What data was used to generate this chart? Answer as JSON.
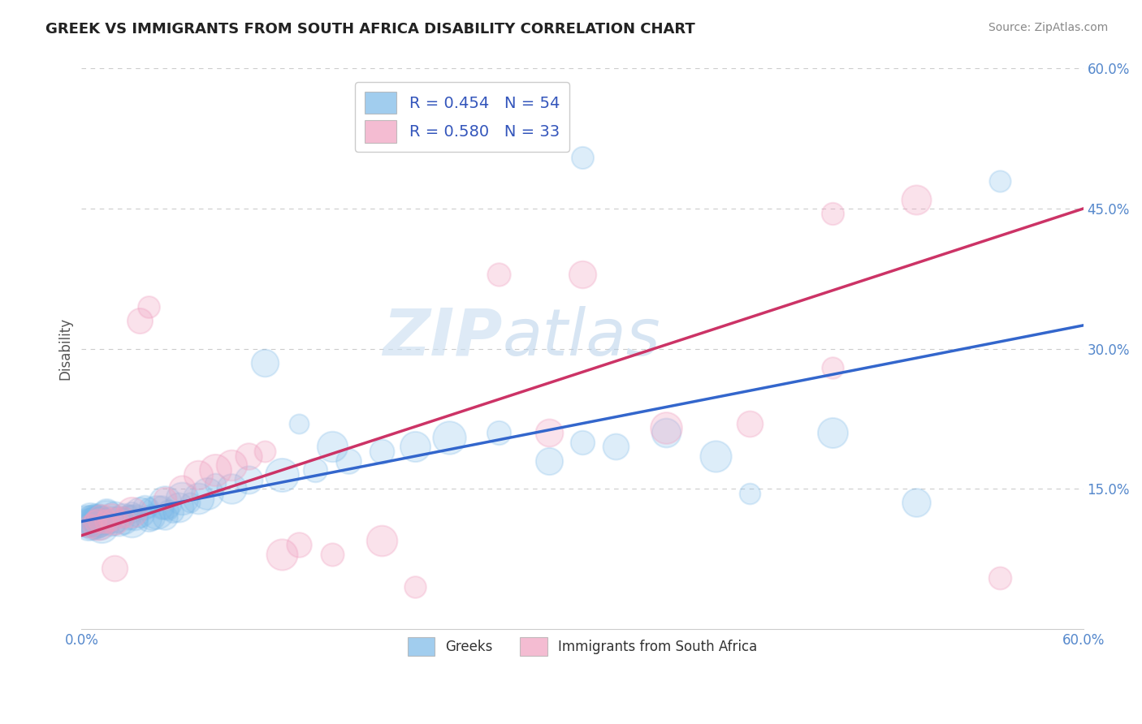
{
  "title": "GREEK VS IMMIGRANTS FROM SOUTH AFRICA DISABILITY CORRELATION CHART",
  "source": "Source: ZipAtlas.com",
  "ylabel": "Disability",
  "xlim": [
    0.0,
    0.6
  ],
  "ylim": [
    0.0,
    0.6
  ],
  "yticks": [
    0.15,
    0.3,
    0.45,
    0.6
  ],
  "ytick_labels": [
    "15.0%",
    "30.0%",
    "45.0%",
    "60.0%"
  ],
  "xtick_labels": [
    "0.0%",
    "60.0%"
  ],
  "watermark": "ZIPatlas",
  "legend_entries": [
    {
      "label": "R = 0.454   N = 54",
      "color": "#a8c8e8"
    },
    {
      "label": "R = 0.580   N = 33",
      "color": "#f4a8c4"
    }
  ],
  "legend_labels_bottom": [
    "Greeks",
    "Immigrants from South Africa"
  ],
  "blue_color": "#7ab8e8",
  "pink_color": "#f0a0c0",
  "blue_line_color": "#3366cc",
  "pink_line_color": "#cc3366",
  "greek_points": [
    [
      0.005,
      0.115
    ],
    [
      0.008,
      0.12
    ],
    [
      0.01,
      0.115
    ],
    [
      0.012,
      0.11
    ],
    [
      0.015,
      0.12
    ],
    [
      0.015,
      0.125
    ],
    [
      0.018,
      0.115
    ],
    [
      0.02,
      0.12
    ],
    [
      0.022,
      0.115
    ],
    [
      0.025,
      0.118
    ],
    [
      0.025,
      0.12
    ],
    [
      0.028,
      0.12
    ],
    [
      0.03,
      0.125
    ],
    [
      0.03,
      0.115
    ],
    [
      0.032,
      0.12
    ],
    [
      0.035,
      0.125
    ],
    [
      0.038,
      0.13
    ],
    [
      0.04,
      0.118
    ],
    [
      0.04,
      0.13
    ],
    [
      0.042,
      0.12
    ],
    [
      0.045,
      0.125
    ],
    [
      0.048,
      0.13
    ],
    [
      0.05,
      0.12
    ],
    [
      0.05,
      0.135
    ],
    [
      0.052,
      0.128
    ],
    [
      0.055,
      0.125
    ],
    [
      0.058,
      0.13
    ],
    [
      0.06,
      0.14
    ],
    [
      0.065,
      0.135
    ],
    [
      0.07,
      0.14
    ],
    [
      0.075,
      0.145
    ],
    [
      0.08,
      0.155
    ],
    [
      0.09,
      0.15
    ],
    [
      0.1,
      0.16
    ],
    [
      0.11,
      0.285
    ],
    [
      0.12,
      0.165
    ],
    [
      0.13,
      0.22
    ],
    [
      0.14,
      0.17
    ],
    [
      0.15,
      0.195
    ],
    [
      0.16,
      0.18
    ],
    [
      0.18,
      0.19
    ],
    [
      0.2,
      0.195
    ],
    [
      0.22,
      0.205
    ],
    [
      0.25,
      0.21
    ],
    [
      0.28,
      0.18
    ],
    [
      0.3,
      0.2
    ],
    [
      0.32,
      0.195
    ],
    [
      0.35,
      0.21
    ],
    [
      0.38,
      0.185
    ],
    [
      0.4,
      0.145
    ],
    [
      0.45,
      0.21
    ],
    [
      0.5,
      0.135
    ],
    [
      0.3,
      0.505
    ],
    [
      0.55,
      0.48
    ]
  ],
  "sa_points": [
    [
      0.005,
      0.11
    ],
    [
      0.008,
      0.115
    ],
    [
      0.01,
      0.112
    ],
    [
      0.012,
      0.118
    ],
    [
      0.015,
      0.115
    ],
    [
      0.018,
      0.12
    ],
    [
      0.02,
      0.115
    ],
    [
      0.025,
      0.12
    ],
    [
      0.03,
      0.125
    ],
    [
      0.035,
      0.33
    ],
    [
      0.04,
      0.345
    ],
    [
      0.05,
      0.14
    ],
    [
      0.06,
      0.15
    ],
    [
      0.07,
      0.165
    ],
    [
      0.08,
      0.17
    ],
    [
      0.09,
      0.175
    ],
    [
      0.1,
      0.185
    ],
    [
      0.11,
      0.19
    ],
    [
      0.12,
      0.08
    ],
    [
      0.13,
      0.09
    ],
    [
      0.15,
      0.08
    ],
    [
      0.18,
      0.095
    ],
    [
      0.2,
      0.045
    ],
    [
      0.25,
      0.38
    ],
    [
      0.28,
      0.21
    ],
    [
      0.3,
      0.38
    ],
    [
      0.35,
      0.215
    ],
    [
      0.4,
      0.22
    ],
    [
      0.45,
      0.28
    ],
    [
      0.5,
      0.46
    ],
    [
      0.55,
      0.055
    ],
    [
      0.45,
      0.445
    ],
    [
      0.02,
      0.065
    ]
  ],
  "greek_big_cluster": [
    [
      0.003,
      0.115
    ],
    [
      0.004,
      0.112
    ],
    [
      0.005,
      0.118
    ],
    [
      0.006,
      0.113
    ],
    [
      0.007,
      0.116
    ],
    [
      0.008,
      0.114
    ],
    [
      0.009,
      0.117
    ],
    [
      0.01,
      0.115
    ],
    [
      0.011,
      0.113
    ]
  ],
  "greek_big_size": 800
}
